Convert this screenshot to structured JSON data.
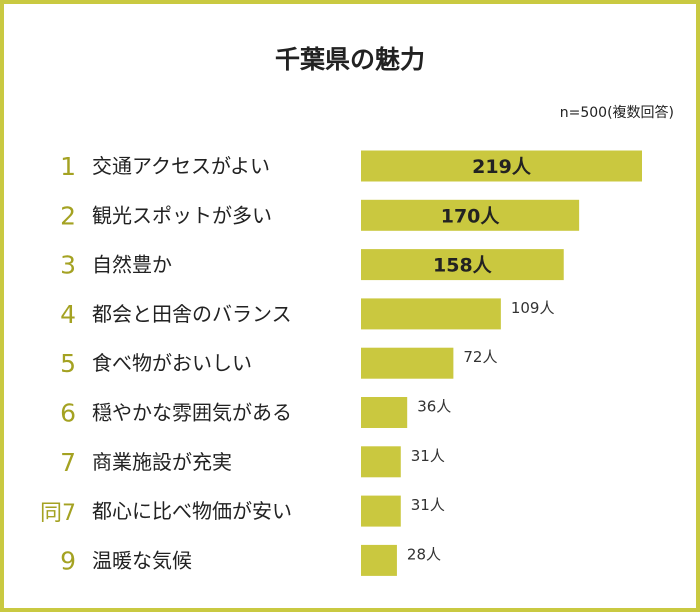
{
  "title": "千葉県の魅力",
  "note": "n=500(複数回答)",
  "colors": {
    "bar": "#cac83f",
    "rank": "#a4a222",
    "border": "#c9c941"
  },
  "chart_data": {
    "type": "bar",
    "orientation": "horizontal",
    "title": "千葉県の魅力",
    "xlim": [
      0,
      219
    ],
    "unit": "人",
    "ranks": [
      "1",
      "2",
      "3",
      "4",
      "5",
      "6",
      "7",
      "同7",
      "9"
    ],
    "categories": [
      "交通アクセスがよい",
      "観光スポットが多い",
      "自然豊か",
      "都会と田舎のバランス",
      "食べ物がおいしい",
      "穏やかな雰囲気がある",
      "商業施設が充実",
      "都心に比べ物価が安い",
      "温暖な気候"
    ],
    "values": [
      219,
      170,
      158,
      109,
      72,
      36,
      31,
      31,
      28
    ],
    "value_labels": [
      "219人",
      "170人",
      "158人",
      "109人",
      "72人",
      "36人",
      "31人",
      "31人",
      "28人"
    ]
  }
}
